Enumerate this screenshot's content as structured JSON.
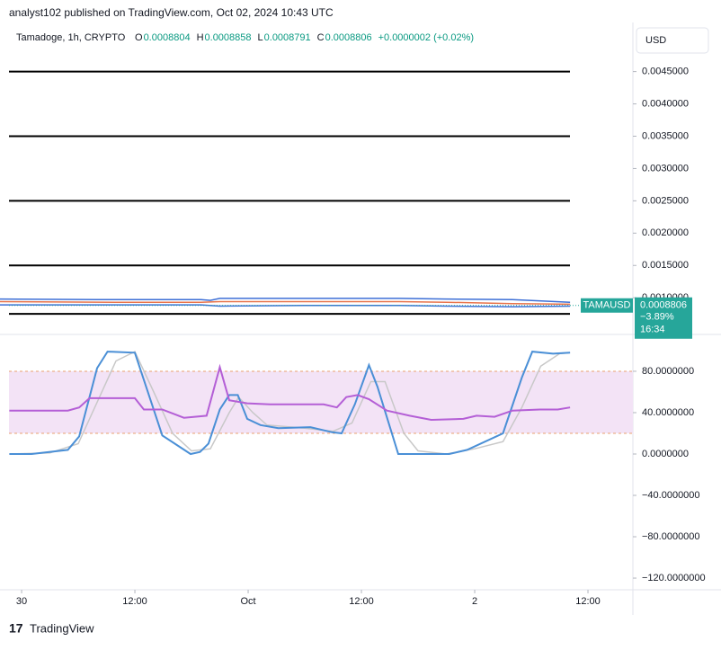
{
  "header": {
    "published": "analyst102 published on TradingView.com, Oct 02, 2024 10:43 UTC",
    "symbol": "Tamadoge, 1h, CRYPTO",
    "ohlc": [
      {
        "key": "O",
        "value": "0.0008804"
      },
      {
        "key": "H",
        "value": "0.0008858"
      },
      {
        "key": "L",
        "value": "0.0008791"
      },
      {
        "key": "C",
        "value": "0.0008806"
      }
    ],
    "change": "+0.0000002 (+0.02%)",
    "currency": "USD"
  },
  "price_tag": {
    "ticker": "TAMAUSD",
    "price": 0.0008806,
    "change": "−3.89%",
    "countdown": "16:34"
  },
  "footer": {
    "brand": "TradingView"
  },
  "chart_data": [
    {
      "type": "line",
      "xlim": [
        -2.29,
        64.76
      ],
      "ylim": [
        0.00046,
        0.00526
      ],
      "yticks": [
        {
          "value": 0.001,
          "label": "0.0010000"
        },
        {
          "value": 0.0015,
          "label": "0.0015000"
        },
        {
          "value": 0.002,
          "label": "0.0020000"
        },
        {
          "value": 0.0025,
          "label": "0.0025000"
        },
        {
          "value": 0.003,
          "label": "0.0030000"
        },
        {
          "value": 0.0035,
          "label": "0.0035000"
        },
        {
          "value": 0.004,
          "label": "0.0040000"
        },
        {
          "value": 0.0045,
          "label": "0.0045000"
        }
      ],
      "levels": [
        0.0045,
        0.0035,
        0.0025,
        0.0015,
        0.00075
      ],
      "level_color": "#000000",
      "series": [
        {
          "color": "#3d6fd6",
          "x": [
            -2.3,
            8,
            19,
            20,
            21,
            30,
            40,
            45,
            52,
            58.1
          ],
          "values": [
            0.00098,
            0.00097,
            0.00097,
            0.00096,
            0.00099,
            0.00099,
            0.00099,
            0.00098,
            0.00097,
            0.00093
          ]
        },
        {
          "color": "#e8734a",
          "x": [
            -2.3,
            10,
            19,
            21,
            30,
            40,
            45,
            52,
            58.1
          ],
          "values": [
            0.00094,
            0.00093,
            0.00093,
            0.00094,
            0.00094,
            0.00094,
            0.00093,
            0.00091,
            0.0009
          ]
        },
        {
          "color": "#3d6fd6",
          "x": [
            -2.3,
            10,
            19,
            21,
            30,
            40,
            45,
            52,
            58.1
          ],
          "values": [
            0.00089,
            0.00089,
            0.00089,
            0.00087,
            0.00088,
            0.00088,
            0.00087,
            0.00086,
            0.00087
          ]
        }
      ]
    },
    {
      "type": "line",
      "xlim": [
        -2.29,
        64.76
      ],
      "ylim": [
        -130.4,
        113
      ],
      "yticks": [
        {
          "value": -120,
          "label": "−120.0000000"
        },
        {
          "value": -80,
          "label": "−80.0000000"
        },
        {
          "value": -40,
          "label": "−40.0000000"
        },
        {
          "value": 0,
          "label": "0.0000000"
        },
        {
          "value": 40,
          "label": "40.0000000"
        },
        {
          "value": 80,
          "label": "80.0000000"
        }
      ],
      "xticks": [
        {
          "value": 0,
          "label": "30"
        },
        {
          "value": 12,
          "label": "12:00"
        },
        {
          "value": 24,
          "label": "Oct"
        },
        {
          "value": 36,
          "label": "12:00"
        },
        {
          "value": 48,
          "label": "2"
        },
        {
          "value": 60,
          "label": "12:00"
        }
      ],
      "band": [
        20,
        80
      ],
      "band_color": "#f3e3f6",
      "series": [
        {
          "color": "#c8c8c8",
          "x": [
            -1.3,
            3,
            6,
            8,
            10,
            12,
            14,
            16,
            18,
            20,
            22,
            23,
            24.5,
            26,
            30,
            33,
            35,
            37,
            38.5,
            40.5,
            42,
            45,
            48,
            51,
            53,
            55,
            57,
            58.1
          ],
          "values": [
            0,
            1,
            10,
            50,
            90,
            99,
            60,
            20,
            3,
            5,
            40,
            55,
            40,
            28,
            25,
            22,
            30,
            70,
            70,
            20,
            3,
            0,
            5,
            12,
            45,
            85,
            97,
            98
          ]
        },
        {
          "color": "#4a8fd6",
          "x": [
            -1.3,
            1.05,
            4.9,
            6.1,
            8,
            9.1,
            12,
            14.9,
            17.9,
            18.9,
            19.8,
            21,
            22,
            22.9,
            23.9,
            25.3,
            27.2,
            30.6,
            32.9,
            33.9,
            35.3,
            36.8,
            37.7,
            39.9,
            42.5,
            45.3,
            47.2,
            51,
            53,
            54.1,
            56.3,
            58.1
          ],
          "values": [
            0,
            0,
            4,
            17,
            83,
            99,
            98,
            18,
            0,
            2,
            10,
            43,
            57,
            57,
            34,
            28,
            25,
            26,
            21,
            20,
            48,
            86,
            65,
            0,
            0,
            0,
            4,
            20,
            74,
            99,
            97,
            98
          ]
        },
        {
          "color": "#b45fd6",
          "x": [
            -1.3,
            4.9,
            6.1,
            7.2,
            12,
            12.95,
            14.9,
            17.2,
            19.6,
            21,
            22,
            23.9,
            26.3,
            32,
            33.4,
            34.4,
            35.6,
            36.8,
            38.7,
            41.1,
            43.4,
            46.8,
            48.2,
            50.1,
            52,
            54.9,
            56.8,
            58.1
          ],
          "values": [
            42,
            42,
            45,
            54,
            54,
            43,
            43,
            35,
            37,
            84,
            52,
            49,
            48,
            48,
            45,
            55,
            57,
            53,
            42,
            37,
            33,
            34,
            37,
            36,
            42,
            43,
            43,
            45
          ]
        }
      ]
    }
  ]
}
